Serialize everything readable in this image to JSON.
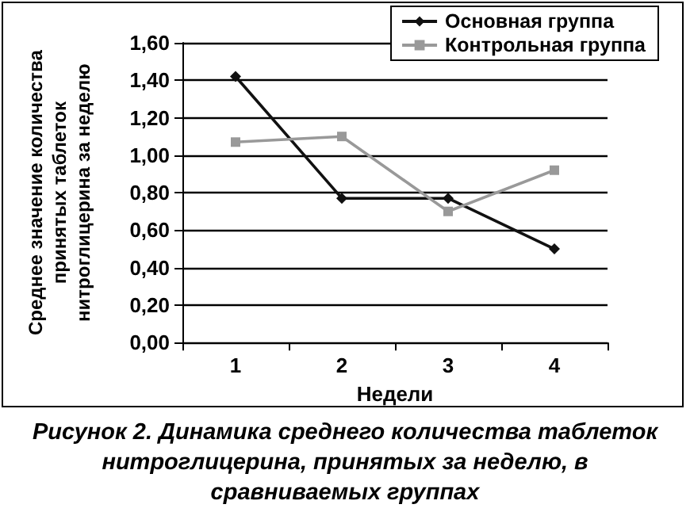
{
  "chart_data": {
    "type": "line",
    "categories": [
      "1",
      "2",
      "3",
      "4"
    ],
    "xlabel": "Недели",
    "ylabel": "Среднее значение количества\nпринятых таблеток\nнитроглицерина за неделю",
    "series": [
      {
        "name": "Основная группа",
        "color": "#111111",
        "marker": "diamond",
        "values": [
          1.42,
          0.77,
          0.77,
          0.5
        ]
      },
      {
        "name": "Контрольная группа",
        "color": "#999999",
        "marker": "square",
        "values": [
          1.07,
          1.1,
          0.7,
          0.92
        ]
      }
    ],
    "ylim": [
      0,
      1.6
    ],
    "yticks": [
      {
        "value": 0,
        "label": "0,00"
      },
      {
        "value": 0.2,
        "label": "0,20"
      },
      {
        "value": 0.4,
        "label": "0,40"
      },
      {
        "value": 0.6,
        "label": "0,60"
      },
      {
        "value": 0.8,
        "label": "0,80"
      },
      {
        "value": 1,
        "label": "1,00"
      },
      {
        "value": 1.2,
        "label": "1,20"
      },
      {
        "value": 1.4,
        "label": "1,40"
      },
      {
        "value": 1.6,
        "label": "1,60"
      }
    ],
    "grid": "y",
    "legend": "top right",
    "line_style": "solid",
    "annotations": [
      "Рисунок 2. Динамика среднего количества таблеток нитроглицерина, принятых за неделю, в сравниваемых группах"
    ]
  }
}
